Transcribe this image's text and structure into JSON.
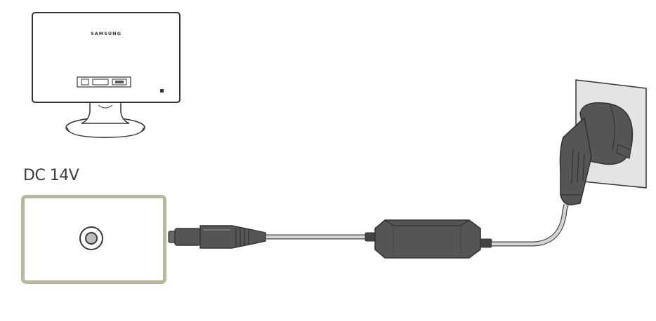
{
  "port": {
    "label": "DC 14V"
  },
  "monitor": {
    "brand": "SAMSUNG"
  },
  "colors": {
    "port_border": "#b8b89f",
    "device_body": "#555555",
    "cable": "#d4d4d4",
    "outline": "#333333",
    "wall_plate": "#e4e4e4"
  },
  "icons": [
    "monitor-back-icon",
    "dc-jack-icon",
    "dc-plug-icon",
    "power-adapter-icon",
    "wall-plug-icon",
    "wall-outlet-icon"
  ]
}
